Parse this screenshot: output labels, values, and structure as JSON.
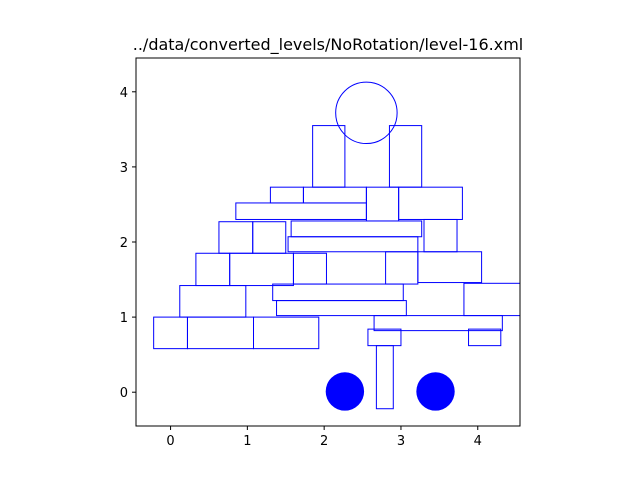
{
  "title": "../data/converted_levels/NoRotation/level-16.xml",
  "colors": {
    "outline": "#0000ff",
    "fill": "#0000ff",
    "axes": "#000000",
    "background": "#ffffff"
  },
  "chart_data": {
    "type": "scatter",
    "title": "../data/converted_levels/NoRotation/level-16.xml",
    "xlabel": "",
    "ylabel": "",
    "xlim": [
      -0.45,
      4.55
    ],
    "ylim": [
      -0.45,
      4.45
    ],
    "grid": false,
    "x_ticks": [
      0,
      1,
      2,
      3,
      4
    ],
    "x_tick_labels": [
      "0",
      "1",
      "2",
      "3",
      "4"
    ],
    "y_ticks": [
      0,
      1,
      2,
      3,
      4
    ],
    "y_tick_labels": [
      "0",
      "1",
      "2",
      "3",
      "4"
    ],
    "rectangles": [
      {
        "x0": -0.22,
        "y0": 0.58,
        "x1": 0.22,
        "y1": 1.0
      },
      {
        "x0": 0.22,
        "y0": 0.58,
        "x1": 1.08,
        "y1": 1.0
      },
      {
        "x0": 1.08,
        "y0": 0.58,
        "x1": 1.93,
        "y1": 1.0
      },
      {
        "x0": 0.12,
        "y0": 1.0,
        "x1": 0.98,
        "y1": 1.42
      },
      {
        "x0": 1.38,
        "y0": 1.02,
        "x1": 3.07,
        "y1": 1.22
      },
      {
        "x0": 1.33,
        "y0": 1.22,
        "x1": 3.03,
        "y1": 1.44
      },
      {
        "x0": 2.65,
        "y0": 0.82,
        "x1": 4.32,
        "y1": 1.02
      },
      {
        "x0": 3.82,
        "y0": 1.02,
        "x1": 4.68,
        "y1": 1.45
      },
      {
        "x0": 2.57,
        "y0": 0.62,
        "x1": 3.0,
        "y1": 0.84
      },
      {
        "x0": 3.88,
        "y0": 0.62,
        "x1": 4.3,
        "y1": 0.84
      },
      {
        "x0": 2.68,
        "y0": -0.22,
        "x1": 2.9,
        "y1": 0.62
      },
      {
        "x0": 0.33,
        "y0": 1.42,
        "x1": 0.77,
        "y1": 1.85
      },
      {
        "x0": 0.77,
        "y0": 1.42,
        "x1": 1.6,
        "y1": 1.85
      },
      {
        "x0": 1.6,
        "y0": 1.44,
        "x1": 2.03,
        "y1": 1.85
      },
      {
        "x0": 2.8,
        "y0": 1.44,
        "x1": 3.22,
        "y1": 1.87
      },
      {
        "x0": 3.22,
        "y0": 1.46,
        "x1": 4.05,
        "y1": 1.87
      },
      {
        "x0": 0.63,
        "y0": 1.85,
        "x1": 1.07,
        "y1": 2.27
      },
      {
        "x0": 1.07,
        "y0": 1.85,
        "x1": 1.5,
        "y1": 2.27
      },
      {
        "x0": 1.53,
        "y0": 1.87,
        "x1": 3.22,
        "y1": 2.07
      },
      {
        "x0": 1.57,
        "y0": 2.07,
        "x1": 3.27,
        "y1": 2.28
      },
      {
        "x0": 3.3,
        "y0": 1.87,
        "x1": 3.73,
        "y1": 2.3
      },
      {
        "x0": 0.85,
        "y0": 2.3,
        "x1": 2.55,
        "y1": 2.52
      },
      {
        "x0": 1.3,
        "y0": 2.52,
        "x1": 1.73,
        "y1": 2.73
      },
      {
        "x0": 1.73,
        "y0": 2.52,
        "x1": 2.55,
        "y1": 2.73
      },
      {
        "x0": 2.55,
        "y0": 2.28,
        "x1": 2.97,
        "y1": 2.73
      },
      {
        "x0": 2.97,
        "y0": 2.3,
        "x1": 3.8,
        "y1": 2.73
      },
      {
        "x0": 1.85,
        "y0": 2.73,
        "x1": 2.27,
        "y1": 3.55
      },
      {
        "x0": 2.85,
        "y0": 2.73,
        "x1": 3.27,
        "y1": 3.55
      }
    ],
    "outline_circles": [
      {
        "cx": 2.55,
        "cy": 3.72,
        "r": 0.4
      }
    ],
    "filled_circles": [
      {
        "cx": 2.27,
        "cy": 0.01,
        "r": 0.25
      },
      {
        "cx": 3.45,
        "cy": 0.01,
        "r": 0.25
      }
    ]
  }
}
